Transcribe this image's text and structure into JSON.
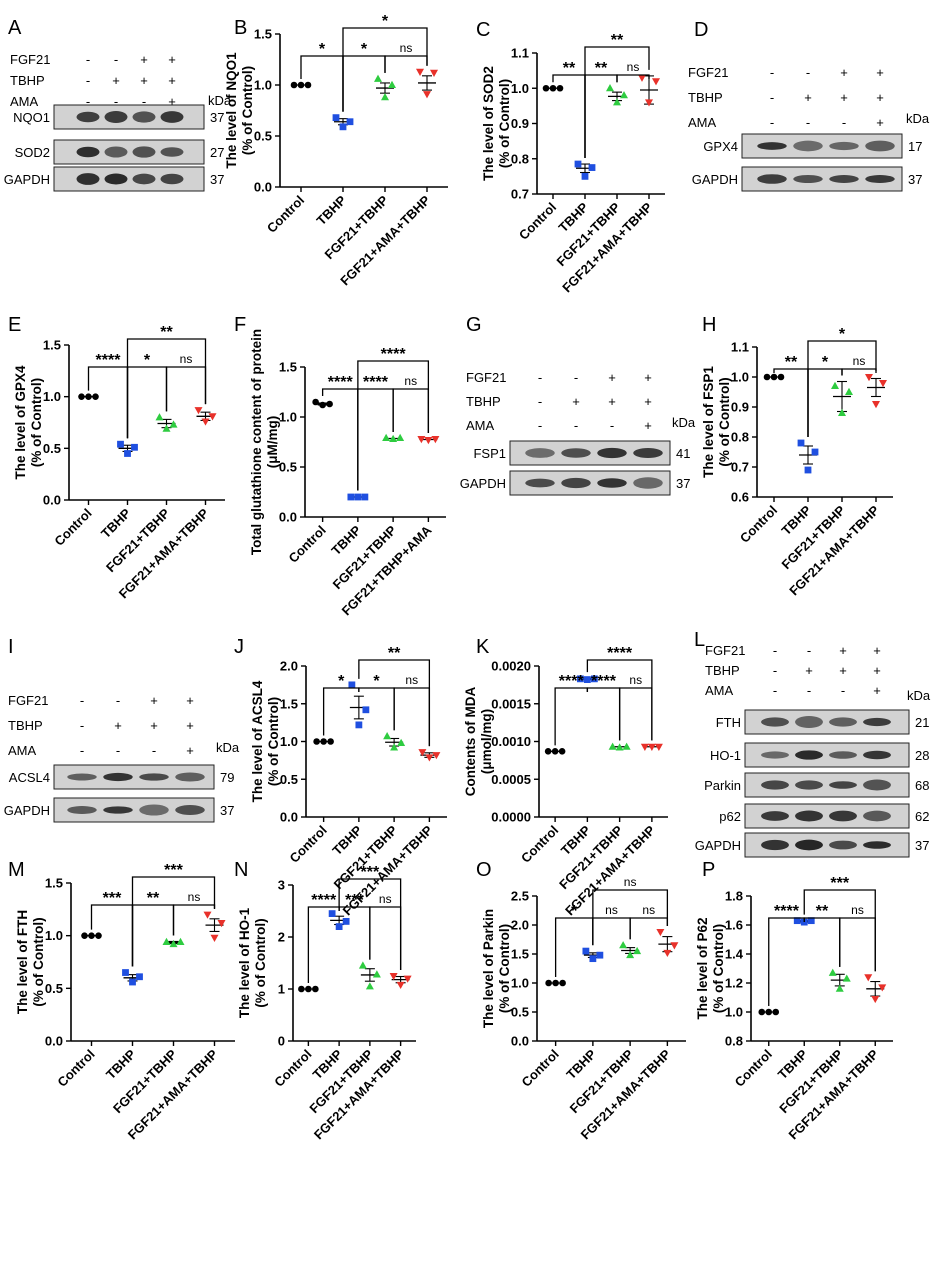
{
  "colors": {
    "Control": "#000000",
    "TBHP": "#1f4fe0",
    "FGF21+TBHP": "#2ecc40",
    "FGF21+AMA+TBHP": "#e8312a"
  },
  "panels": [
    {
      "letter": "A",
      "type": "blot",
      "lanes": [
        "FGF21",
        "TBHP",
        "AMA"
      ],
      "signs": [
        [
          "-",
          "-",
          "+",
          "+"
        ],
        [
          "-",
          "+",
          "+",
          "+"
        ],
        [
          "-",
          "-",
          "-",
          "+"
        ]
      ],
      "bands": [
        {
          "name": "NQO1",
          "kda": "37"
        },
        {
          "name": "SOD2",
          "kda": "27"
        },
        {
          "name": "GAPDH",
          "kda": "37"
        }
      ]
    },
    {
      "letter": "D",
      "type": "blot",
      "lanes": [
        "FGF21",
        "TBHP",
        "AMA"
      ],
      "signs": [
        [
          "-",
          "-",
          "+",
          "+"
        ],
        [
          "-",
          "+",
          "+",
          "+"
        ],
        [
          "-",
          "-",
          "-",
          "+"
        ]
      ],
      "bands": [
        {
          "name": "GPX4",
          "kda": "17"
        },
        {
          "name": "GAPDH",
          "kda": "37"
        }
      ]
    },
    {
      "letter": "G",
      "type": "blot",
      "lanes": [
        "FGF21",
        "TBHP",
        "AMA"
      ],
      "signs": [
        [
          "-",
          "-",
          "+",
          "+"
        ],
        [
          "-",
          "+",
          "+",
          "+"
        ],
        [
          "-",
          "-",
          "-",
          "+"
        ]
      ],
      "bands": [
        {
          "name": "FSP1",
          "kda": "41"
        },
        {
          "name": "GAPDH",
          "kda": "37"
        }
      ]
    },
    {
      "letter": "I",
      "type": "blot",
      "lanes": [
        "FGF21",
        "TBHP",
        "AMA"
      ],
      "signs": [
        [
          "-",
          "-",
          "+",
          "+"
        ],
        [
          "-",
          "+",
          "+",
          "+"
        ],
        [
          "-",
          "-",
          "-",
          "+"
        ]
      ],
      "bands": [
        {
          "name": "ACSL4",
          "kda": "79"
        },
        {
          "name": "GAPDH",
          "kda": "37"
        }
      ]
    },
    {
      "letter": "L",
      "type": "blot",
      "lanes": [
        "FGF21",
        "TBHP",
        "AMA"
      ],
      "signs": [
        [
          "-",
          "-",
          "+",
          "+"
        ],
        [
          "-",
          "+",
          "+",
          "+"
        ],
        [
          "-",
          "-",
          "-",
          "+"
        ]
      ],
      "bands": [
        {
          "name": "FTH",
          "kda": "21"
        },
        {
          "name": "HO-1",
          "kda": "28"
        },
        {
          "name": "Parkin",
          "kda": "68"
        },
        {
          "name": "p62",
          "kda": "62"
        },
        {
          "name": "GAPDH",
          "kda": "37"
        }
      ]
    }
  ],
  "kda_label": "kDa",
  "chart_data": [
    {
      "letter": "B",
      "type": "scatter",
      "ylabel": [
        "The level of NQO1",
        "(% of Control)"
      ],
      "ylim": [
        0,
        1.5
      ],
      "ticks": [
        "0.0",
        "0.5",
        "1.0",
        "1.5"
      ],
      "categories": [
        "Control",
        "TBHP",
        "FGF21+TBHP",
        "FGF21+AMA+TBHP"
      ],
      "series": [
        {
          "values": [
            1.0,
            1.0,
            1.0
          ],
          "mean": 1.0,
          "sem": 0
        },
        {
          "values": [
            0.68,
            0.59,
            0.64
          ],
          "mean": 0.64,
          "sem": 0.03
        },
        {
          "values": [
            1.06,
            0.88,
            1.0
          ],
          "mean": 0.97,
          "sem": 0.05
        },
        {
          "values": [
            1.13,
            0.91,
            1.12
          ],
          "mean": 1.02,
          "sem": 0.07
        }
      ],
      "sig": [
        {
          "from": 0,
          "to": 1,
          "label": "*"
        },
        {
          "from": 1,
          "to": 2,
          "label": "*"
        },
        {
          "from": 2,
          "to": 3,
          "label": "ns"
        },
        {
          "from": 1,
          "to": 3,
          "label": "*"
        }
      ]
    },
    {
      "letter": "C",
      "type": "scatter",
      "ylabel": [
        "The level of SOD2",
        "(% of Control)"
      ],
      "ylim": [
        0.7,
        1.1
      ],
      "ticks": [
        "0.7",
        "0.8",
        "0.9",
        "1.0",
        "1.1"
      ],
      "categories": [
        "Control",
        "TBHP",
        "FGF21+TBHP",
        "FGF21+AMA+TBHP"
      ],
      "series": [
        {
          "values": [
            1.0,
            1.0,
            1.0
          ],
          "mean": 1.0,
          "sem": 0
        },
        {
          "values": [
            0.785,
            0.75,
            0.775
          ],
          "mean": 0.773,
          "sem": 0.012
        },
        {
          "values": [
            1.0,
            0.96,
            0.98
          ],
          "mean": 0.977,
          "sem": 0.012
        },
        {
          "values": [
            1.03,
            0.96,
            1.02
          ],
          "mean": 0.995,
          "sem": 0.04
        }
      ],
      "sig": [
        {
          "from": 0,
          "to": 1,
          "label": "**"
        },
        {
          "from": 1,
          "to": 2,
          "label": "**"
        },
        {
          "from": 2,
          "to": 3,
          "label": "ns"
        },
        {
          "from": 1,
          "to": 3,
          "label": "**"
        }
      ]
    },
    {
      "letter": "E",
      "type": "scatter",
      "ylabel": [
        "The level of GPX4",
        "(% of Control)"
      ],
      "ylim": [
        0,
        1.5
      ],
      "ticks": [
        "0.0",
        "0.5",
        "1.0",
        "1.5"
      ],
      "categories": [
        "Control",
        "TBHP",
        "FGF21+TBHP",
        "FGF21+AMA+TBHP"
      ],
      "series": [
        {
          "values": [
            1.0,
            1.0,
            1.0
          ],
          "mean": 1.0,
          "sem": 0
        },
        {
          "values": [
            0.54,
            0.45,
            0.51
          ],
          "mean": 0.5,
          "sem": 0.03
        },
        {
          "values": [
            0.8,
            0.69,
            0.73
          ],
          "mean": 0.74,
          "sem": 0.04
        },
        {
          "values": [
            0.87,
            0.76,
            0.81
          ],
          "mean": 0.81,
          "sem": 0.04
        }
      ],
      "sig": [
        {
          "from": 0,
          "to": 1,
          "label": "****"
        },
        {
          "from": 1,
          "to": 2,
          "label": "*"
        },
        {
          "from": 2,
          "to": 3,
          "label": "ns"
        },
        {
          "from": 1,
          "to": 3,
          "label": "**"
        }
      ]
    },
    {
      "letter": "F",
      "type": "scatter",
      "ylabel": [
        "Total glutathione content of protein",
        "(μM/mg)"
      ],
      "ylim": [
        0,
        1.5
      ],
      "ticks": [
        "0.0",
        "0.5",
        "1.0",
        "1.5"
      ],
      "categories": [
        "Control",
        "TBHP",
        "FGF21+TBHP",
        "FGF21+TBHP+AMA"
      ],
      "series": [
        {
          "values": [
            1.15,
            1.12,
            1.13
          ],
          "mean": 1.13,
          "sem": 0.01
        },
        {
          "values": [
            0.2,
            0.2,
            0.2
          ],
          "mean": 0.2,
          "sem": 0.005
        },
        {
          "values": [
            0.79,
            0.78,
            0.79
          ],
          "mean": 0.785,
          "sem": 0.005
        },
        {
          "values": [
            0.78,
            0.77,
            0.78
          ],
          "mean": 0.775,
          "sem": 0.005
        }
      ],
      "sig": [
        {
          "from": 0,
          "to": 1,
          "label": "****"
        },
        {
          "from": 1,
          "to": 2,
          "label": "****"
        },
        {
          "from": 2,
          "to": 3,
          "label": "ns"
        },
        {
          "from": 1,
          "to": 3,
          "label": "****"
        }
      ]
    },
    {
      "letter": "H",
      "type": "scatter",
      "ylabel": [
        "The level of FSP1",
        "(% of Control)"
      ],
      "ylim": [
        0.6,
        1.1
      ],
      "ticks": [
        "0.6",
        "0.7",
        "0.8",
        "0.9",
        "1.0",
        "1.1"
      ],
      "categories": [
        "Control",
        "TBHP",
        "FGF21+TBHP",
        "FGF21+AMA+TBHP"
      ],
      "series": [
        {
          "values": [
            1.0,
            1.0,
            1.0
          ],
          "mean": 1.0,
          "sem": 0
        },
        {
          "values": [
            0.78,
            0.69,
            0.75
          ],
          "mean": 0.74,
          "sem": 0.03
        },
        {
          "values": [
            0.97,
            0.88,
            0.95
          ],
          "mean": 0.935,
          "sem": 0.05
        },
        {
          "values": [
            1.0,
            0.91,
            0.98
          ],
          "mean": 0.965,
          "sem": 0.03
        }
      ],
      "sig": [
        {
          "from": 0,
          "to": 1,
          "label": "**"
        },
        {
          "from": 1,
          "to": 2,
          "label": "*"
        },
        {
          "from": 2,
          "to": 3,
          "label": "ns"
        },
        {
          "from": 1,
          "to": 3,
          "label": "*"
        }
      ]
    },
    {
      "letter": "J",
      "type": "scatter",
      "ylabel": [
        "The level of ACSL4",
        "(% of Control)"
      ],
      "ylim": [
        0,
        2.0
      ],
      "ticks": [
        "0.0",
        "0.5",
        "1.0",
        "1.5",
        "2.0"
      ],
      "categories": [
        "Control",
        "TBHP",
        "FGF21+TBHP",
        "FGF21+AMA+TBHP"
      ],
      "series": [
        {
          "values": [
            1.0,
            1.0,
            1.0
          ],
          "mean": 1.0,
          "sem": 0
        },
        {
          "values": [
            1.75,
            1.22,
            1.42
          ],
          "mean": 1.45,
          "sem": 0.15
        },
        {
          "values": [
            1.07,
            0.92,
            0.98
          ],
          "mean": 0.99,
          "sem": 0.05
        },
        {
          "values": [
            0.86,
            0.79,
            0.82
          ],
          "mean": 0.82,
          "sem": 0.03
        }
      ],
      "sig": [
        {
          "from": 0,
          "to": 1,
          "label": "*"
        },
        {
          "from": 1,
          "to": 2,
          "label": "*"
        },
        {
          "from": 2,
          "to": 3,
          "label": "ns"
        },
        {
          "from": 1,
          "to": 3,
          "label": "**"
        }
      ]
    },
    {
      "letter": "K",
      "type": "scatter",
      "ylabel": [
        "Contents of MDA",
        "(μmol/mg)"
      ],
      "ylim": [
        0,
        0.002
      ],
      "ticks": [
        "0.0000",
        "0.0005",
        "0.0010",
        "0.0015",
        "0.0020"
      ],
      "categories": [
        "Control",
        "TBHP",
        "FGF21+TBHP",
        "FGF21+AMA+TBHP"
      ],
      "series": [
        {
          "values": [
            0.00087,
            0.00087,
            0.00087
          ],
          "mean": 0.00087,
          "sem": 0
        },
        {
          "values": [
            0.00183,
            0.00182,
            0.00183
          ],
          "mean": 0.00183,
          "sem": 1e-05
        },
        {
          "values": [
            0.00093,
            0.00092,
            0.00093
          ],
          "mean": 0.00093,
          "sem": 5e-06
        },
        {
          "values": [
            0.00093,
            0.00093,
            0.00093
          ],
          "mean": 0.00093,
          "sem": 5e-06
        }
      ],
      "sig": [
        {
          "from": 0,
          "to": 1,
          "label": "****"
        },
        {
          "from": 1,
          "to": 2,
          "label": "****"
        },
        {
          "from": 2,
          "to": 3,
          "label": "ns"
        },
        {
          "from": 1,
          "to": 3,
          "label": "****"
        }
      ]
    },
    {
      "letter": "M",
      "type": "scatter",
      "ylabel": [
        "The level of FTH",
        "(% of Control)"
      ],
      "ylim": [
        0,
        1.5
      ],
      "ticks": [
        "0.0",
        "0.5",
        "1.0",
        "1.5"
      ],
      "categories": [
        "Control",
        "TBHP",
        "FGF21+TBHP",
        "FGF21+AMA+TBHP"
      ],
      "series": [
        {
          "values": [
            1.0,
            1.0,
            1.0
          ],
          "mean": 1.0,
          "sem": 0
        },
        {
          "values": [
            0.65,
            0.56,
            0.61
          ],
          "mean": 0.6,
          "sem": 0.03
        },
        {
          "values": [
            0.94,
            0.92,
            0.94
          ],
          "mean": 0.935,
          "sem": 0.01
        },
        {
          "values": [
            1.2,
            0.98,
            1.12
          ],
          "mean": 1.1,
          "sem": 0.06
        }
      ],
      "sig": [
        {
          "from": 0,
          "to": 1,
          "label": "***"
        },
        {
          "from": 1,
          "to": 2,
          "label": "**"
        },
        {
          "from": 2,
          "to": 3,
          "label": "ns"
        },
        {
          "from": 1,
          "to": 3,
          "label": "***"
        }
      ]
    },
    {
      "letter": "N",
      "type": "scatter",
      "ylabel": [
        "The level of HO-1",
        "(% of Control)"
      ],
      "ylim": [
        0,
        3
      ],
      "ticks": [
        "0",
        "1",
        "2",
        "3"
      ],
      "categories": [
        "Control",
        "TBHP",
        "FGF21+TBHP",
        "FGF21+AMA+TBHP"
      ],
      "series": [
        {
          "values": [
            1.0,
            1.0,
            1.0
          ],
          "mean": 1.0,
          "sem": 0
        },
        {
          "values": [
            2.45,
            2.2,
            2.3
          ],
          "mean": 2.32,
          "sem": 0.08
        },
        {
          "values": [
            1.45,
            1.05,
            1.28
          ],
          "mean": 1.27,
          "sem": 0.12
        },
        {
          "values": [
            1.25,
            1.08,
            1.2
          ],
          "mean": 1.18,
          "sem": 0.06
        }
      ],
      "sig": [
        {
          "from": 0,
          "to": 1,
          "label": "****"
        },
        {
          "from": 1,
          "to": 2,
          "label": "***"
        },
        {
          "from": 2,
          "to": 3,
          "label": "ns"
        },
        {
          "from": 1,
          "to": 3,
          "label": "***"
        }
      ]
    },
    {
      "letter": "O",
      "type": "scatter",
      "ylabel": [
        "The level of Parkin",
        "(% of Control)"
      ],
      "ylim": [
        0,
        2.5
      ],
      "ticks": [
        "0.0",
        "0.5",
        "1.0",
        "1.5",
        "2.0",
        "2.5"
      ],
      "categories": [
        "Control",
        "TBHP",
        "FGF21+TBHP",
        "FGF21+AMA+TBHP"
      ],
      "series": [
        {
          "values": [
            1.0,
            1.0,
            1.0
          ],
          "mean": 1.0,
          "sem": 0
        },
        {
          "values": [
            1.55,
            1.42,
            1.48
          ],
          "mean": 1.48,
          "sem": 0.04
        },
        {
          "values": [
            1.65,
            1.48,
            1.55
          ],
          "mean": 1.56,
          "sem": 0.05
        },
        {
          "values": [
            1.88,
            1.52,
            1.65
          ],
          "mean": 1.67,
          "sem": 0.13
        }
      ],
      "sig": [
        {
          "from": 0,
          "to": 1,
          "label": "*"
        },
        {
          "from": 1,
          "to": 2,
          "label": "ns"
        },
        {
          "from": 2,
          "to": 3,
          "label": "ns"
        },
        {
          "from": 1,
          "to": 3,
          "label": "ns"
        }
      ]
    },
    {
      "letter": "P",
      "type": "scatter",
      "ylabel": [
        "The level of P62",
        "(% of Control)"
      ],
      "ylim": [
        0.8,
        1.8
      ],
      "ticks": [
        "0.8",
        "1.0",
        "1.2",
        "1.4",
        "1.6",
        "1.8"
      ],
      "categories": [
        "Control",
        "TBHP",
        "FGF21+TBHP",
        "FGF21+AMA+TBHP"
      ],
      "series": [
        {
          "values": [
            1.0,
            1.0,
            1.0
          ],
          "mean": 1.0,
          "sem": 0
        },
        {
          "values": [
            1.63,
            1.62,
            1.63
          ],
          "mean": 1.625,
          "sem": 0.005
        },
        {
          "values": [
            1.27,
            1.16,
            1.23
          ],
          "mean": 1.22,
          "sem": 0.04
        },
        {
          "values": [
            1.24,
            1.09,
            1.17
          ],
          "mean": 1.16,
          "sem": 0.05
        }
      ],
      "sig": [
        {
          "from": 0,
          "to": 1,
          "label": "****"
        },
        {
          "from": 1,
          "to": 2,
          "label": "**"
        },
        {
          "from": 2,
          "to": 3,
          "label": "ns"
        },
        {
          "from": 1,
          "to": 3,
          "label": "***"
        }
      ]
    }
  ]
}
